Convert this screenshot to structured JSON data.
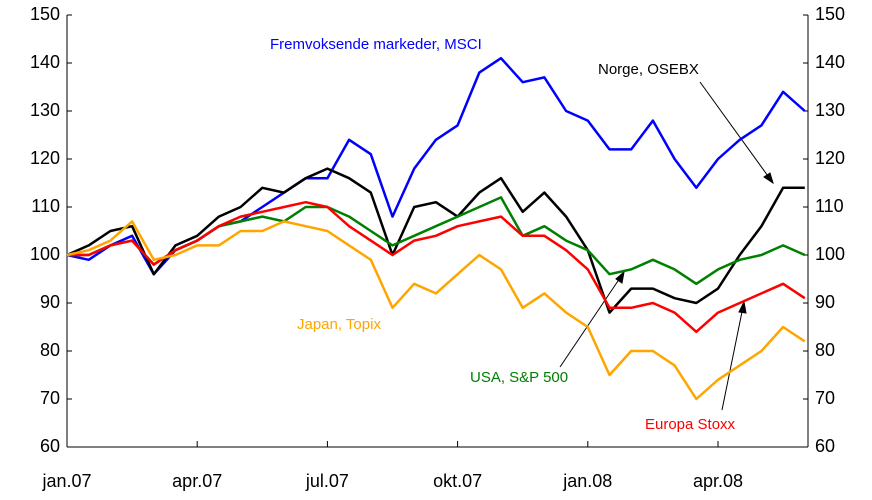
{
  "chart_data": {
    "type": "line",
    "categories": [
      "jan.07",
      null,
      null,
      null,
      null,
      null,
      "apr.07",
      null,
      null,
      null,
      null,
      null,
      "jul.07",
      null,
      null,
      null,
      null,
      null,
      "okt.07",
      null,
      null,
      null,
      null,
      null,
      "jan.08",
      null,
      null,
      null,
      null,
      null,
      "apr.08",
      null,
      null,
      null,
      null
    ],
    "series": [
      {
        "name": "Fremvoksende markeder, MSCI",
        "color": "#0000ff",
        "values": [
          100,
          99,
          102,
          104,
          96,
          101,
          103,
          106,
          107,
          110,
          113,
          116,
          116,
          124,
          121,
          108,
          118,
          124,
          127,
          138,
          141,
          136,
          137,
          130,
          128,
          122,
          122,
          128,
          120,
          114,
          120,
          124,
          127,
          134,
          130
        ]
      },
      {
        "name": "Norge, OSEBX",
        "color": "#000000",
        "values": [
          100,
          102,
          105,
          106,
          96,
          102,
          104,
          108,
          110,
          114,
          113,
          116,
          118,
          116,
          113,
          100,
          110,
          111,
          108,
          113,
          116,
          109,
          113,
          108,
          101,
          88,
          93,
          93,
          91,
          90,
          93,
          100,
          106,
          114,
          114
        ]
      },
      {
        "name": "USA, S&P 500",
        "color": "#008000",
        "values": [
          100,
          100,
          102,
          103,
          98,
          101,
          103,
          106,
          107,
          108,
          107,
          110,
          110,
          108,
          105,
          102,
          104,
          106,
          108,
          110,
          112,
          104,
          106,
          103,
          101,
          96,
          97,
          99,
          97,
          94,
          97,
          99,
          100,
          102,
          100
        ]
      },
      {
        "name": "Europa Stoxx",
        "color": "#ff0000",
        "values": [
          100,
          100,
          102,
          103,
          98,
          101,
          103,
          106,
          108,
          109,
          110,
          111,
          110,
          106,
          103,
          100,
          103,
          104,
          106,
          107,
          108,
          104,
          104,
          101,
          97,
          89,
          89,
          90,
          88,
          84,
          88,
          90,
          92,
          94,
          91
        ]
      },
      {
        "name": "Japan, Topix",
        "color": "#ffa500",
        "values": [
          100,
          101,
          103,
          107,
          99,
          100,
          102,
          102,
          105,
          105,
          107,
          106,
          105,
          102,
          99,
          89,
          94,
          92,
          96,
          100,
          97,
          89,
          92,
          88,
          85,
          75,
          80,
          80,
          77,
          70,
          74,
          77,
          80,
          85,
          82
        ]
      }
    ],
    "ylim": [
      60,
      150
    ],
    "yticks": [
      60,
      70,
      80,
      90,
      100,
      110,
      120,
      130,
      140,
      150
    ],
    "y2lim": [
      60,
      150
    ],
    "y2ticks": [
      60,
      70,
      80,
      90,
      100,
      110,
      120,
      130,
      140,
      150
    ]
  }
}
